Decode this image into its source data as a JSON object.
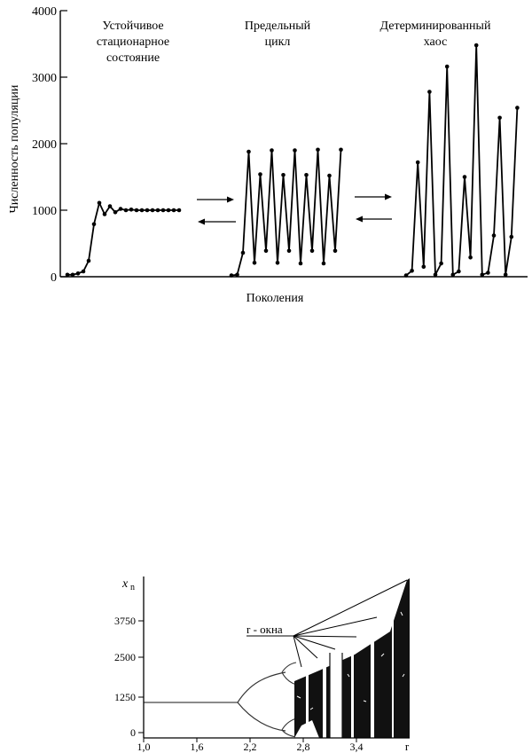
{
  "chart_data": [
    {
      "type": "line",
      "title": "",
      "ylabel": "Численность популяции",
      "xlabel": "Поколения",
      "ylim": [
        0,
        4000
      ],
      "yticks": [
        "0",
        "1000",
        "2000",
        "3000",
        "4000"
      ],
      "grid": false,
      "annotations": [
        {
          "lines": [
            "Устойчивое",
            "стационарное",
            "состояние"
          ]
        },
        {
          "lines": [
            "Предельный",
            "цикл"
          ]
        },
        {
          "lines": [
            "Детерминированный",
            "хаос"
          ]
        }
      ],
      "series": [
        {
          "name": "",
          "values": [
            30,
            30,
            50,
            80,
            240,
            790,
            1110,
            940,
            1060,
            970,
            1020,
            1000,
            1010,
            1000,
            1000,
            1000,
            1000,
            1000,
            1000,
            1000,
            1000,
            1000
          ]
        },
        {
          "name": "",
          "values": [
            20,
            30,
            360,
            1880,
            210,
            1540,
            390,
            1900,
            210,
            1530,
            390,
            1900,
            200,
            1530,
            390,
            1910,
            200,
            1520,
            390,
            1910
          ]
        },
        {
          "name": "",
          "values": [
            20,
            90,
            1720,
            150,
            2780,
            30,
            200,
            3160,
            30,
            80,
            1500,
            290,
            3480,
            30,
            60,
            620,
            2390,
            30,
            600,
            2540
          ]
        }
      ]
    },
    {
      "type": "scatter",
      "title": "",
      "ylabel": "x",
      "ylabel_sub": "n",
      "xlabel": "r",
      "xlim": [
        1.0,
        4.0
      ],
      "ylim": [
        0,
        5000
      ],
      "xticks": [
        "1,0",
        "1,6",
        "2,2",
        "2,8",
        "3,4"
      ],
      "yticks": [
        "0",
        "1250",
        "2500",
        "3750"
      ],
      "annotations": [
        {
          "text": "r - окна"
        }
      ],
      "fixed_point_value": 1000,
      "windows_r": [
        2.83,
        3.06,
        3.22,
        3.4,
        3.65,
        3.92
      ]
    }
  ]
}
